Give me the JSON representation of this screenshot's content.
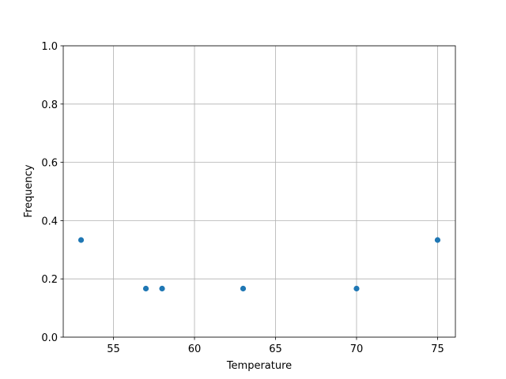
{
  "chart_data": {
    "type": "scatter",
    "title": "",
    "xlabel": "Temperature",
    "ylabel": "Frequency",
    "x": [
      53,
      57,
      58,
      63,
      70,
      75
    ],
    "y": [
      0.3333,
      0.1667,
      0.1667,
      0.1667,
      0.1667,
      0.3333
    ],
    "xlim": [
      51.9,
      76.1
    ],
    "ylim": [
      0,
      1.0
    ],
    "xticks": [
      "55",
      "60",
      "65",
      "70",
      "75"
    ],
    "xtick_values": [
      55,
      60,
      65,
      70,
      75
    ],
    "yticks": [
      "0.0",
      "0.2",
      "0.4",
      "0.6",
      "0.8",
      "1.0"
    ],
    "ytick_values": [
      0,
      0.2,
      0.4,
      0.6,
      0.8,
      1.0
    ],
    "grid": true,
    "color": "#1f77b4"
  }
}
